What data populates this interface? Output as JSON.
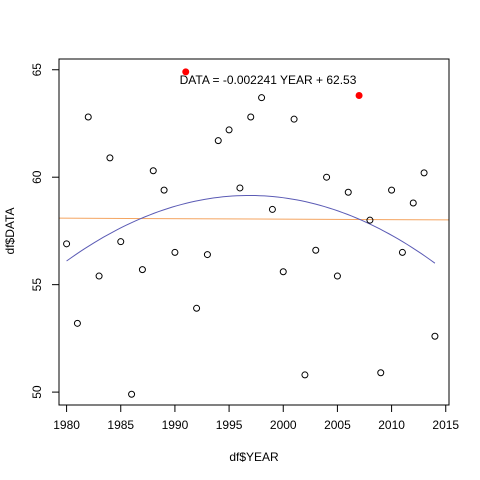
{
  "chart_data": {
    "type": "scatter",
    "title": "",
    "xlabel": "df$YEAR",
    "ylabel": "df$DATA",
    "xlim": [
      1979.3,
      2015.3
    ],
    "ylim": [
      49.4,
      65.5
    ],
    "x_ticks": [
      1980,
      1985,
      1990,
      1995,
      2000,
      2005,
      2010,
      2015
    ],
    "y_ticks": [
      50,
      55,
      60,
      65
    ],
    "grid": false,
    "annotation": "DATA = -0.002241 YEAR + 62.53",
    "colors": {
      "points": "#000000",
      "highlight": "#ff0000",
      "linear_fit": "#f4a460",
      "curve_fit": "#5b5bb5"
    },
    "points": [
      {
        "x": 1980,
        "y": 56.9
      },
      {
        "x": 1981,
        "y": 53.2
      },
      {
        "x": 1982,
        "y": 62.8
      },
      {
        "x": 1983,
        "y": 55.4
      },
      {
        "x": 1984,
        "y": 60.9
      },
      {
        "x": 1985,
        "y": 57.0
      },
      {
        "x": 1986,
        "y": 49.9
      },
      {
        "x": 1987,
        "y": 55.7
      },
      {
        "x": 1988,
        "y": 60.3
      },
      {
        "x": 1989,
        "y": 59.4
      },
      {
        "x": 1990,
        "y": 56.5
      },
      {
        "x": 1992,
        "y": 53.9
      },
      {
        "x": 1993,
        "y": 56.4
      },
      {
        "x": 1994,
        "y": 61.7
      },
      {
        "x": 1995,
        "y": 62.2
      },
      {
        "x": 1996,
        "y": 59.5
      },
      {
        "x": 1997,
        "y": 62.8
      },
      {
        "x": 1998,
        "y": 63.7
      },
      {
        "x": 1999,
        "y": 58.5
      },
      {
        "x": 2000,
        "y": 55.6
      },
      {
        "x": 2001,
        "y": 62.7
      },
      {
        "x": 2002,
        "y": 50.8
      },
      {
        "x": 2003,
        "y": 56.6
      },
      {
        "x": 2004,
        "y": 60.0
      },
      {
        "x": 2005,
        "y": 55.4
      },
      {
        "x": 2006,
        "y": 59.3
      },
      {
        "x": 2008,
        "y": 58.0
      },
      {
        "x": 2009,
        "y": 50.9
      },
      {
        "x": 2010,
        "y": 59.4
      },
      {
        "x": 2011,
        "y": 56.5
      },
      {
        "x": 2012,
        "y": 58.8
      },
      {
        "x": 2013,
        "y": 60.2
      },
      {
        "x": 2014,
        "y": 52.6
      }
    ],
    "highlight_points": [
      {
        "x": 1991,
        "y": 64.9
      },
      {
        "x": 2007,
        "y": 63.8
      }
    ],
    "linear_fit": {
      "slope": -0.002241,
      "intercept": 62.53
    },
    "curve_fit": {
      "x": [
        1980,
        1997,
        2014
      ],
      "y": [
        56.1,
        59.15,
        56.0
      ]
    }
  }
}
